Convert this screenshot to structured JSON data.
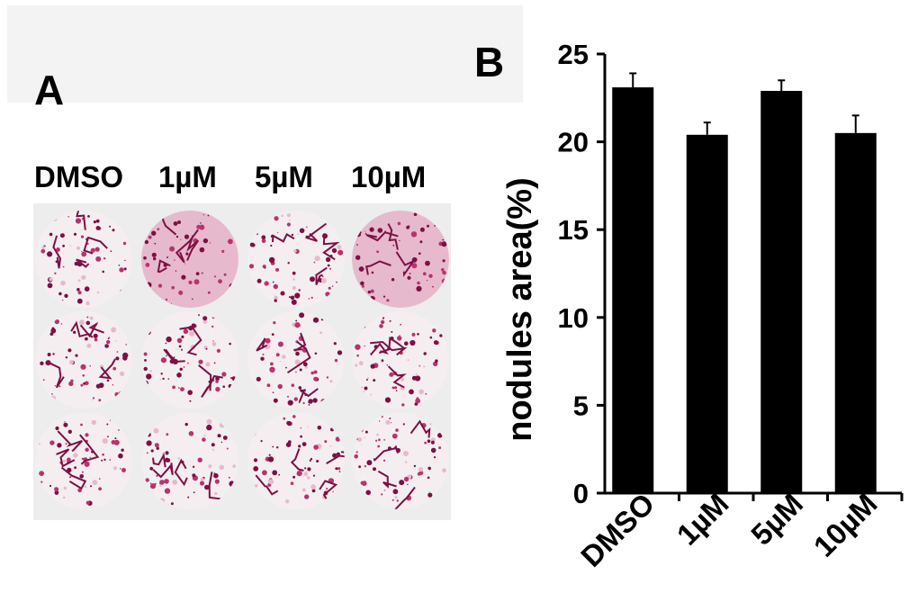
{
  "panel_a": {
    "label": "A",
    "columns": [
      "DMSO",
      "1µM",
      "5µM",
      "10µM"
    ],
    "well_colors": {
      "background": "#f4eef1",
      "stain_dark": "#7d1045",
      "stain_mid": "#b8336e",
      "stain_light": "#e7b9cc"
    }
  },
  "panel_b": {
    "label": "B"
  },
  "chart_data": {
    "type": "bar",
    "categories": [
      "DMSO",
      "1µM",
      "5µM",
      "10µM"
    ],
    "values": [
      23.1,
      20.4,
      22.9,
      20.5
    ],
    "errors": [
      0.8,
      0.7,
      0.6,
      1.0
    ],
    "xlabel": "",
    "ylabel": "nodules area(%)",
    "ylim": [
      0,
      25
    ],
    "yticks": [
      0,
      5,
      10,
      15,
      20,
      25
    ],
    "bar_color": "#000000",
    "grid": false
  }
}
